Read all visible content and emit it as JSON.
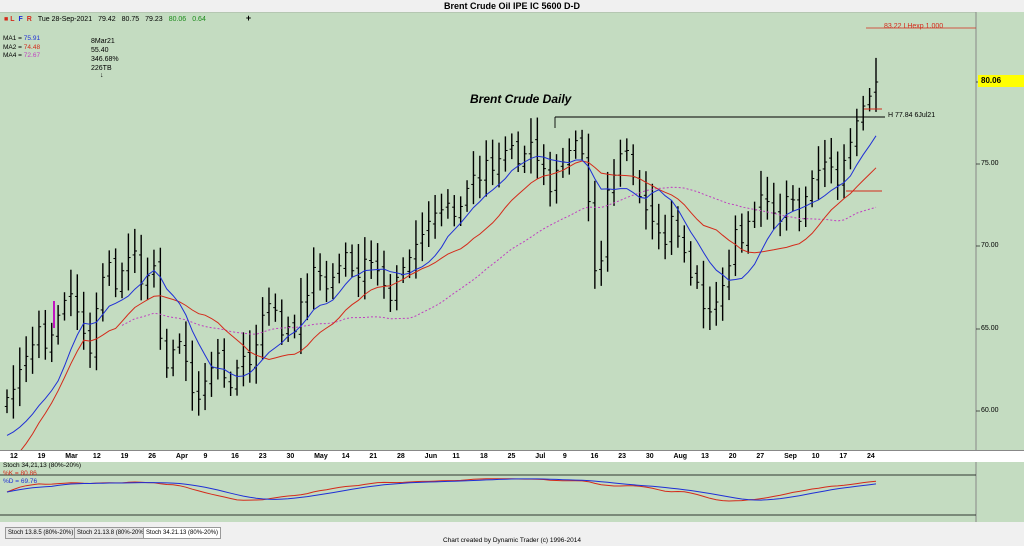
{
  "window": {
    "title": "Brent Crude Oil IPE IC 5600 D-D"
  },
  "info_bar": {
    "mode_letters": [
      "L",
      "F",
      "R"
    ],
    "date": "Tue 28-Sep-2021",
    "open": "79.42",
    "high": "80.75",
    "low": "79.23",
    "close": "80.06",
    "change": "0.64",
    "crosshair_glyph": "+"
  },
  "moving_averages": [
    {
      "label": "MA1",
      "value": "75.91",
      "color": "#1f2fd6"
    },
    {
      "label": "MA2",
      "value": "74.48",
      "color": "#d42a1a"
    },
    {
      "label": "MA4",
      "value": "72.67",
      "color": "#c040c0"
    }
  ],
  "pivot_annotation": {
    "date": "8Mar21",
    "price": "55.40",
    "percent": "346.68%",
    "bars": "226TB",
    "arrow": "↓"
  },
  "chart_annotations": {
    "chart_label": "Brent Crude Daily",
    "lhexp": "83.22 LHexp 1.000",
    "high_marker": "H 77.84 6Jul21"
  },
  "price_axis": {
    "ticks": [
      "80.06",
      "75.00",
      "70.00",
      "65.00",
      "60.00"
    ],
    "current_price": "80.06"
  },
  "date_axis": {
    "labels": [
      "12",
      "19",
      "Mar",
      "12",
      "19",
      "26",
      "Apr",
      "9",
      "16",
      "23",
      "30",
      "May",
      "14",
      "21",
      "28",
      "Jun",
      "11",
      "18",
      "25",
      "Jul",
      "9",
      "16",
      "23",
      "30",
      "Aug",
      "13",
      "20",
      "27",
      "Sep",
      "10",
      "17",
      "24"
    ]
  },
  "stochastic": {
    "title": "Stoch 34,21,13 (80%-20%)",
    "k_label": "%K = 80.86",
    "d_label": "%D = 69.76",
    "k_color": "#d42a1a",
    "d_color": "#1f2fd6"
  },
  "tabs": [
    "Stoch 13.8.5 (80%-20%)",
    "Stoch 21.13.8 (80%-20%)",
    "Stoch 34.21.13 (80%-20%)"
  ],
  "footer": {
    "text": "Chart created by Dynamic Trader  (c)  1996-2014"
  },
  "chart_data": {
    "type": "ohlc",
    "title": "Brent Crude Oil IPE IC 5600 D-D",
    "subtitle": "Brent Crude Daily",
    "ylim": [
      57.5,
      81.5
    ],
    "x": [
      "12",
      "19",
      "Mar",
      "12",
      "19",
      "26",
      "Apr",
      "9",
      "16",
      "23",
      "30",
      "May",
      "14",
      "21",
      "28",
      "Jun",
      "11",
      "18",
      "25",
      "Jul",
      "9",
      "16",
      "23",
      "30",
      "Aug",
      "13",
      "20",
      "27",
      "Sep",
      "10",
      "17",
      "24"
    ],
    "close_series": [
      60.9,
      61.4,
      62.6,
      63.4,
      64.1,
      65.2,
      63.9,
      64.7,
      65.9,
      66.8,
      67.2,
      66.1,
      64.8,
      63.6,
      66.3,
      68.2,
      69.1,
      67.5,
      68.6,
      69.4,
      69.8,
      67.8,
      68.3,
      68.9,
      64.5,
      62.7,
      63.8,
      64.3,
      63.1,
      61.2,
      60.8,
      61.9,
      62.7,
      63.6,
      62.1,
      61.5,
      62.7,
      63.4,
      62.9,
      64.1,
      65.9,
      66.6,
      66.2,
      64.7,
      65.2,
      64.9,
      66.7,
      67.1,
      68.8,
      68.3,
      67.5,
      68.2,
      68.9,
      69.7,
      68.6,
      68.2,
      69.3,
      69.1,
      68.6,
      67.7,
      66.8,
      68.2,
      68.8,
      69.4,
      70.2,
      70.8,
      71.6,
      72.1,
      72.3,
      72.7,
      71.9,
      72.5,
      73.6,
      74.4,
      74.1,
      75.3,
      74.7,
      75.4,
      75.9,
      76.2,
      75.1,
      75.7,
      76.4,
      75.3,
      74.8,
      73.4,
      74.7,
      75.2,
      75.9,
      76.5,
      75.7,
      72.8,
      68.6,
      69.2,
      73.5,
      74.4,
      75.7,
      75.9,
      74.3,
      73.1,
      72.3,
      71.6,
      70.9,
      70.2,
      71.9,
      70.7,
      69.7,
      68.2,
      67.9,
      66.3,
      66.1,
      66.7,
      67.7,
      68.9,
      71.1,
      70.3,
      71.6,
      72.3,
      73.2,
      72.8,
      72.1,
      71.6,
      73.1,
      72.9,
      71.6,
      73.1,
      74.2,
      74.7,
      75.2,
      74.9,
      73.8,
      75.3,
      76.4,
      77.7,
      78.6,
      79.2,
      80.06
    ],
    "ma1_label": "MA1",
    "ma2_label": "MA2",
    "ma4_label": "MA4",
    "stoch_k_label": "%K",
    "stoch_d_label": "%D"
  }
}
